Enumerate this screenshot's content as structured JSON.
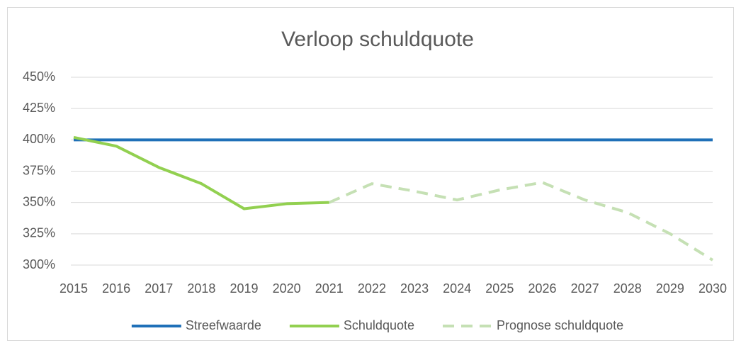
{
  "chart_data": {
    "type": "line",
    "title": "Verloop schuldquote",
    "categories": [
      "2015",
      "2016",
      "2017",
      "2018",
      "2019",
      "2020",
      "2021",
      "2022",
      "2023",
      "2024",
      "2025",
      "2026",
      "2027",
      "2028",
      "2029",
      "2030"
    ],
    "series": [
      {
        "name": "Streefwaarde",
        "color": "#1f70b8",
        "line_style": "solid",
        "values": [
          400,
          400,
          400,
          400,
          400,
          400,
          400,
          400,
          400,
          400,
          400,
          400,
          400,
          400,
          400,
          400
        ]
      },
      {
        "name": "Schuldquote",
        "color": "#92d050",
        "line_style": "solid",
        "values": [
          402,
          395,
          378,
          365,
          345,
          349,
          350,
          null,
          null,
          null,
          null,
          null,
          null,
          null,
          null,
          null
        ]
      },
      {
        "name": "Prognose schuldquote",
        "color": "#c5e0b4",
        "line_style": "dashed",
        "values": [
          null,
          null,
          null,
          null,
          null,
          null,
          350,
          365,
          359,
          352,
          360,
          366,
          352,
          342,
          325,
          304
        ]
      }
    ],
    "ylim": [
      300,
      450
    ],
    "yticks": [
      {
        "value": 300,
        "label": "300%"
      },
      {
        "value": 325,
        "label": "325%"
      },
      {
        "value": 350,
        "label": "350%"
      },
      {
        "value": 375,
        "label": "375%"
      },
      {
        "value": 400,
        "label": "400%"
      },
      {
        "value": 425,
        "label": "425%"
      },
      {
        "value": 450,
        "label": "450%"
      }
    ],
    "grid": true,
    "legend": "bottom"
  }
}
